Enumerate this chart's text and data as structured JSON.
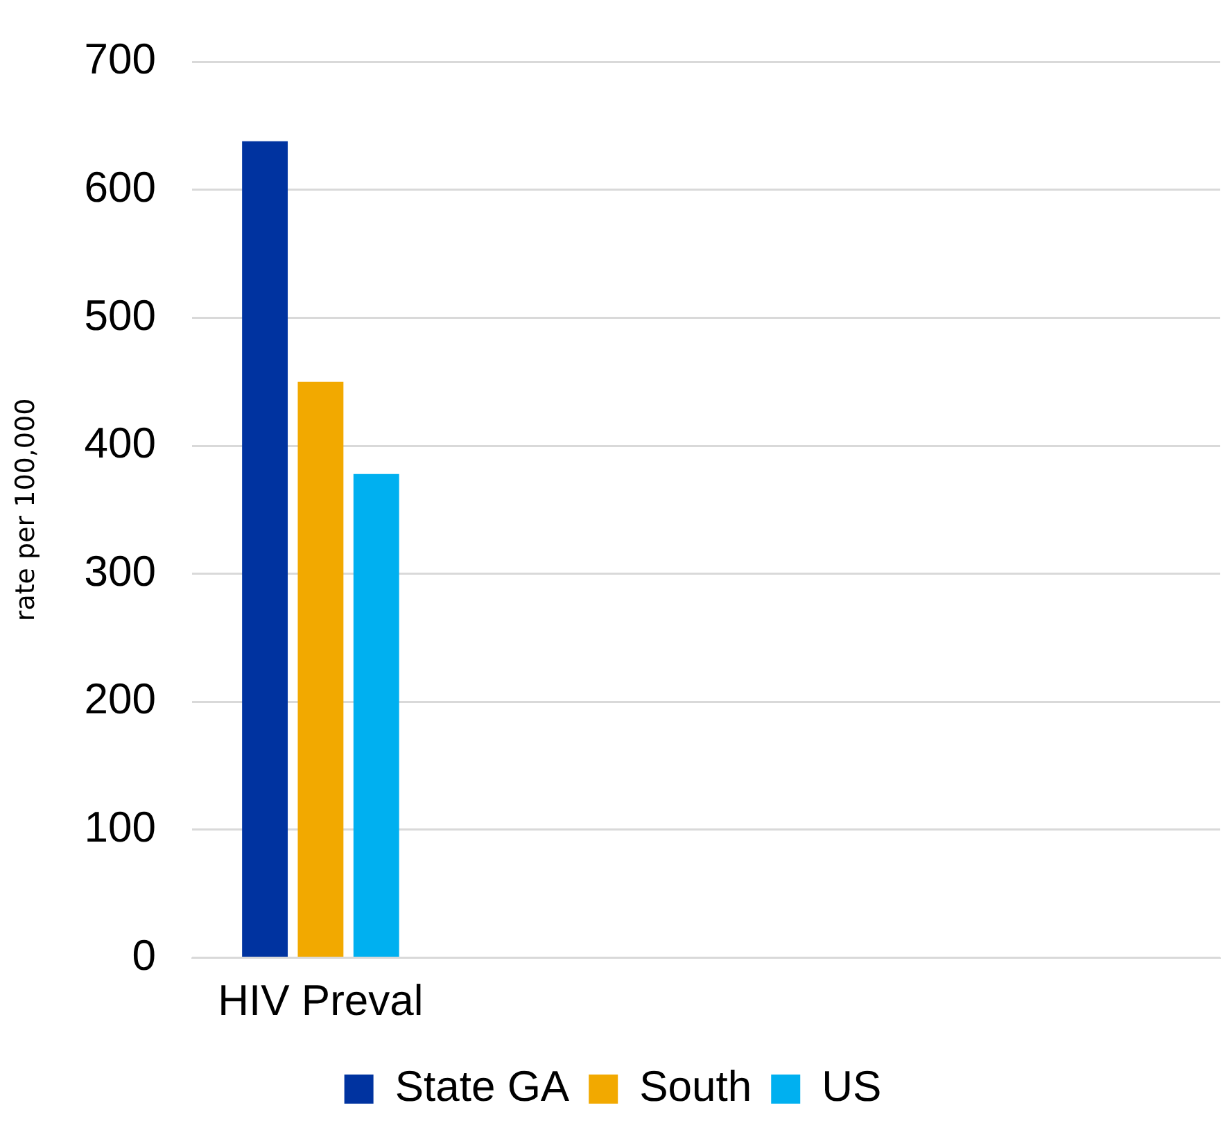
{
  "chart_data": {
    "type": "bar",
    "ylabel": "rate per 100,000",
    "categories": [
      "HIV Preval",
      null,
      null,
      null
    ],
    "series": [
      {
        "name": "State GA",
        "color": "#0033a0",
        "values": [
          638,
          null,
          null,
          null
        ]
      },
      {
        "name": "South",
        "color": "#f2a900",
        "values": [
          450,
          null,
          null,
          null
        ]
      },
      {
        "name": "US",
        "color": "#00b0f0",
        "values": [
          378,
          null,
          null,
          null
        ]
      }
    ],
    "ylim": [
      0,
      700
    ],
    "yticks": [
      0,
      100,
      200,
      300,
      400,
      500,
      600,
      700
    ],
    "grid": "y",
    "legend": "bottom"
  }
}
